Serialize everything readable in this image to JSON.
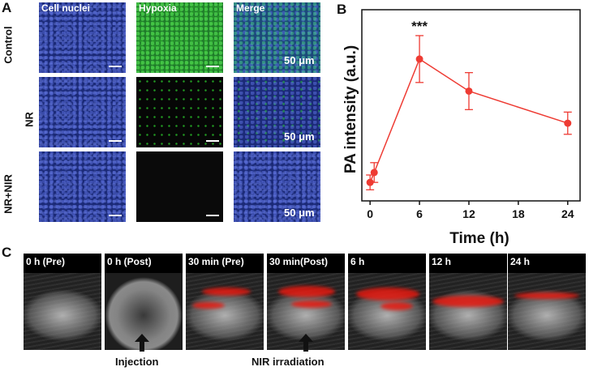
{
  "panel_a": {
    "letter": "A",
    "columns": [
      "Cell nuclei",
      "Hypoxia",
      "Merge"
    ],
    "rows": [
      "Control",
      "NR",
      "NR+NIR"
    ],
    "scale_label": "50 μm"
  },
  "panel_b": {
    "letter": "B",
    "significance": "***"
  },
  "panel_c": {
    "letter": "C",
    "frames": [
      "0 h (Pre)",
      "0 h (Post)",
      "30 min (Pre)",
      "30 min(Post)",
      "6 h",
      "12 h",
      "24 h"
    ],
    "arrows": [
      "Injection",
      "NIR irradiation"
    ]
  },
  "colors": {
    "line": "#ee3b33",
    "nuclei": "#1b2a78",
    "hypoxia": "#1f7a2a",
    "photoacoustic": "#e6190f"
  },
  "chart_data": {
    "type": "line",
    "xlabel": "Time (h)",
    "ylabel": "PA intensity (a.u.)",
    "x": [
      0,
      0.5,
      6,
      12,
      24
    ],
    "series": [
      {
        "values": [
          0.5,
          1.3,
          10.5,
          7.9,
          5.3
        ],
        "errors": [
          0.6,
          0.8,
          1.9,
          1.5,
          0.9
        ]
      }
    ],
    "xticks": [
      "0",
      "6",
      "12",
      "18",
      "24"
    ],
    "xlim": [
      -1,
      25.5
    ],
    "ylim": [
      -1,
      14.5
    ],
    "grid": false
  }
}
